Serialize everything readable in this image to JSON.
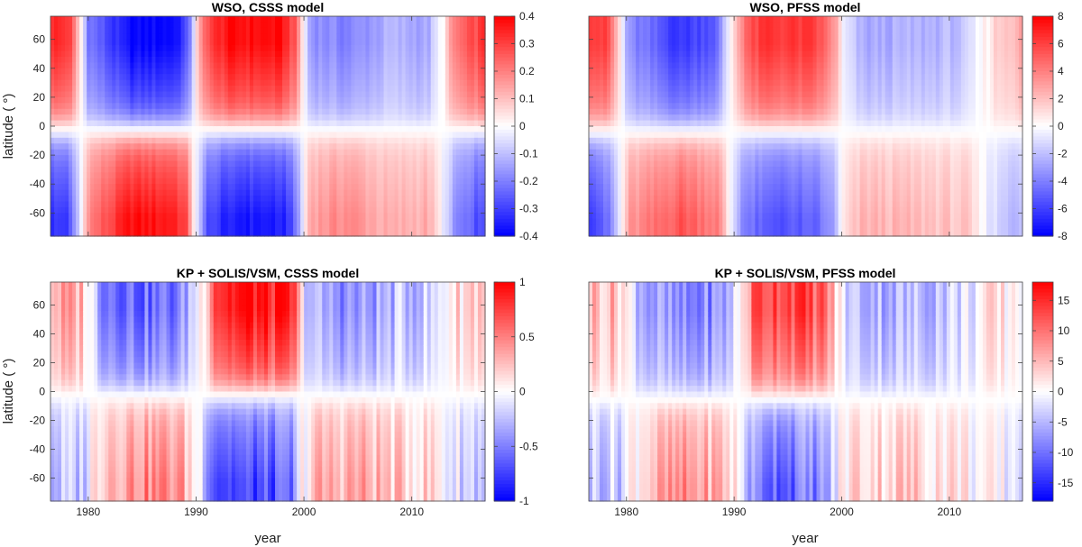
{
  "figure": {
    "xlabel": "year",
    "ylabel": "latitude ( °)"
  },
  "chart_data": [
    {
      "type": "heatmap",
      "title": "WSO, CSSS model",
      "xlabel": "",
      "ylabel": "latitude ( °)",
      "xlim": [
        1976.5,
        2016.8
      ],
      "ylim": [
        -76,
        76
      ],
      "xticks": [
        1980,
        1990,
        2000,
        2010
      ],
      "xtick_labels": [],
      "yticks": [
        60,
        40,
        20,
        0,
        -20,
        -40,
        -60
      ],
      "ytick_labels": [
        "60",
        "40",
        "20",
        "0",
        "-20",
        "-40",
        "-60"
      ],
      "colorbar": {
        "min": -0.4,
        "max": 0.4,
        "ticks": [
          0.4,
          0.3,
          0.2,
          0.1,
          0,
          -0.1,
          -0.2,
          -0.3,
          -0.4
        ],
        "tick_labels": [
          "0.4",
          "0.3",
          "0.2",
          "0.1",
          "0",
          "-0.1",
          "-0.2",
          "-0.3",
          "-0.4"
        ],
        "colormap": [
          "#0000ff",
          "#ffffff",
          "#ff0000"
        ]
      },
      "north_polarity_by_year": [
        [
          1976.5,
          0.85
        ],
        [
          1978.2,
          0.8
        ],
        [
          1979.3,
          0.1
        ],
        [
          1980.0,
          -0.5
        ],
        [
          1982.0,
          -0.75
        ],
        [
          1984.0,
          -1.0
        ],
        [
          1988.0,
          -0.95
        ],
        [
          1989.2,
          -0.7
        ],
        [
          1990.0,
          0.1
        ],
        [
          1991.0,
          0.7
        ],
        [
          1993.0,
          0.95
        ],
        [
          1998.0,
          0.95
        ],
        [
          1999.3,
          0.6
        ],
        [
          2000.0,
          0.0
        ],
        [
          2000.6,
          -0.4
        ],
        [
          2004.0,
          -0.5
        ],
        [
          2008.0,
          -0.3
        ],
        [
          2011.5,
          -0.35
        ],
        [
          2012.8,
          0.0
        ],
        [
          2014.0,
          0.5
        ],
        [
          2016.8,
          0.8
        ]
      ],
      "south_factor": -0.95,
      "equator_offset_deg": -3
    },
    {
      "type": "heatmap",
      "title": "WSO, PFSS model",
      "xlabel": "",
      "ylabel": "",
      "xlim": [
        1976.5,
        2016.8
      ],
      "ylim": [
        -76,
        76
      ],
      "xticks": [
        1980,
        1990,
        2000,
        2010
      ],
      "xtick_labels": [],
      "yticks": [
        60,
        40,
        20,
        0,
        -20,
        -40,
        -60
      ],
      "ytick_labels": [],
      "colorbar": {
        "min": -8,
        "max": 8,
        "ticks": [
          8,
          6,
          4,
          2,
          0,
          -2,
          -4,
          -6,
          -8
        ],
        "tick_labels": [
          "8",
          "6",
          "4",
          "2",
          "0",
          "-2",
          "-4",
          "-6",
          "-8"
        ],
        "colormap": [
          "#0000ff",
          "#ffffff",
          "#ff0000"
        ]
      },
      "north_polarity_by_year": [
        [
          1976.5,
          0.85
        ],
        [
          1978.3,
          0.7
        ],
        [
          1979.4,
          0.1
        ],
        [
          1980.2,
          -0.45
        ],
        [
          1983.0,
          -0.65
        ],
        [
          1985.0,
          -0.8
        ],
        [
          1988.5,
          -0.6
        ],
        [
          1989.6,
          0.0
        ],
        [
          1991.0,
          0.6
        ],
        [
          1993.0,
          0.8
        ],
        [
          1997.5,
          0.75
        ],
        [
          1999.4,
          0.4
        ],
        [
          2000.2,
          -0.1
        ],
        [
          2002.0,
          -0.35
        ],
        [
          2008.0,
          -0.3
        ],
        [
          2011.5,
          -0.25
        ],
        [
          2013.0,
          0.0
        ],
        [
          2014.5,
          0.2
        ],
        [
          2016.8,
          0.35
        ]
      ],
      "south_factor": -0.85,
      "equator_offset_deg": -4
    },
    {
      "type": "heatmap",
      "title": "KP + SOLIS/VSM, CSSS model",
      "xlabel": "year",
      "ylabel": "latitude ( °)",
      "xlim": [
        1976.5,
        2016.8
      ],
      "ylim": [
        -76,
        76
      ],
      "xticks": [
        1980,
        1990,
        2000,
        2010
      ],
      "xtick_labels": [
        "1980",
        "1990",
        "2000",
        "2010"
      ],
      "yticks": [
        60,
        40,
        20,
        0,
        -20,
        -40,
        -60
      ],
      "ytick_labels": [
        "60",
        "40",
        "20",
        "0",
        "-20",
        "-40",
        "-60"
      ],
      "colorbar": {
        "min": -1,
        "max": 1,
        "ticks": [
          1,
          0.5,
          0,
          -0.5,
          -1
        ],
        "tick_labels": [
          "1",
          "0.5",
          "0",
          "-0.5",
          "-1"
        ],
        "colormap": [
          "#0000ff",
          "#ffffff",
          "#ff0000"
        ]
      },
      "north_polarity_by_year": [
        [
          1976.5,
          0.35
        ],
        [
          1979.5,
          0.3
        ],
        [
          1980.4,
          -0.1
        ],
        [
          1981.5,
          -0.45
        ],
        [
          1985.0,
          -0.6
        ],
        [
          1988.5,
          -0.55
        ],
        [
          1989.5,
          -0.2
        ],
        [
          1990.6,
          0.1
        ],
        [
          1991.8,
          0.85
        ],
        [
          1995.0,
          0.95
        ],
        [
          1999.0,
          0.8
        ],
        [
          1999.8,
          0.0
        ],
        [
          2001.0,
          -0.35
        ],
        [
          2005.0,
          -0.45
        ],
        [
          2009.0,
          -0.25
        ],
        [
          2012.0,
          -0.2
        ],
        [
          2013.5,
          0.1
        ],
        [
          2016.8,
          0.3
        ]
      ],
      "south_factor": -0.8,
      "equator_offset_deg": -3
    },
    {
      "type": "heatmap",
      "title": "KP + SOLIS/VSM, PFSS model",
      "xlabel": "year",
      "ylabel": "",
      "xlim": [
        1976.5,
        2016.8
      ],
      "ylim": [
        -76,
        76
      ],
      "xticks": [
        1980,
        1990,
        2000,
        2010
      ],
      "xtick_labels": [
        "1980",
        "1990",
        "2000",
        "2010"
      ],
      "yticks": [
        60,
        40,
        20,
        0,
        -20,
        -40,
        -60
      ],
      "ytick_labels": [],
      "colorbar": {
        "min": -18,
        "max": 18,
        "ticks": [
          15,
          10,
          5,
          0,
          -5,
          -10,
          -15
        ],
        "tick_labels": [
          "15",
          "10",
          "5",
          "0",
          "-5",
          "-10",
          "-15"
        ],
        "colormap": [
          "#0000ff",
          "#ffffff",
          "#ff0000"
        ]
      },
      "north_polarity_by_year": [
        [
          1976.5,
          0.3
        ],
        [
          1979.5,
          0.25
        ],
        [
          1980.5,
          -0.1
        ],
        [
          1982.0,
          -0.35
        ],
        [
          1985.5,
          -0.55
        ],
        [
          1989.0,
          -0.4
        ],
        [
          1990.5,
          0.0
        ],
        [
          1992.0,
          0.7
        ],
        [
          1995.0,
          0.8
        ],
        [
          1998.5,
          0.6
        ],
        [
          1999.8,
          0.0
        ],
        [
          2001.0,
          -0.25
        ],
        [
          2006.0,
          -0.3
        ],
        [
          2011.0,
          -0.15
        ],
        [
          2013.5,
          0.05
        ],
        [
          2016.8,
          0.1
        ]
      ],
      "south_factor": -0.75,
      "equator_offset_deg": -5
    }
  ]
}
